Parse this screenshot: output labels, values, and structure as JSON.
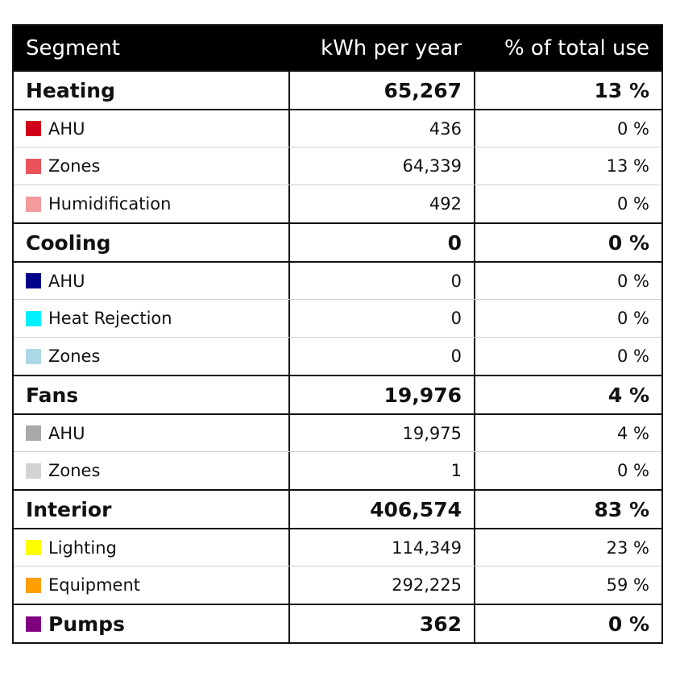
{
  "header": {
    "segment": "Segment",
    "kwh": "kWh per year",
    "pct": "% of total use"
  },
  "groups": [
    {
      "name": "Heating",
      "kwh": "65,267",
      "pct": "13 %",
      "items": [
        {
          "name": "AHU",
          "kwh": "436",
          "pct": "0 %",
          "color": "#d0021b"
        },
        {
          "name": "Zones",
          "kwh": "64,339",
          "pct": "13 %",
          "color": "#e8545a"
        },
        {
          "name": "Humidification",
          "kwh": "492",
          "pct": "0 %",
          "color": "#f39a9d"
        }
      ]
    },
    {
      "name": "Cooling",
      "kwh": "0",
      "pct": "0 %",
      "items": [
        {
          "name": "AHU",
          "kwh": "0",
          "pct": "0 %",
          "color": "#00008b"
        },
        {
          "name": "Heat Rejection",
          "kwh": "0",
          "pct": "0 %",
          "color": "#00f0ff"
        },
        {
          "name": "Zones",
          "kwh": "0",
          "pct": "0 %",
          "color": "#add8e6"
        }
      ]
    },
    {
      "name": "Fans",
      "kwh": "19,976",
      "pct": "4 %",
      "items": [
        {
          "name": "AHU",
          "kwh": "19,975",
          "pct": "4 %",
          "color": "#a9a9a9"
        },
        {
          "name": "Zones",
          "kwh": "1",
          "pct": "0 %",
          "color": "#d3d3d3"
        }
      ]
    },
    {
      "name": "Interior",
      "kwh": "406,574",
      "pct": "83 %",
      "items": [
        {
          "name": "Lighting",
          "kwh": "114,349",
          "pct": "23 %",
          "color": "#ffff00"
        },
        {
          "name": "Equipment",
          "kwh": "292,225",
          "pct": "59 %",
          "color": "#ff9f00"
        }
      ]
    }
  ],
  "pumps": {
    "name": "Pumps",
    "kwh": "362",
    "pct": "0 %",
    "color": "#800080"
  }
}
